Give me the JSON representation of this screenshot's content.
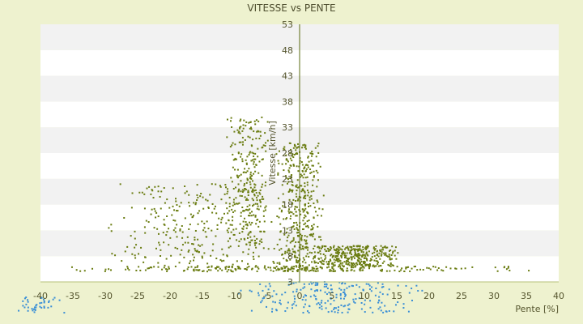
{
  "chart_data": {
    "type": "scatter",
    "title": "VITESSE vs PENTE",
    "xlabel": "Pente [%]",
    "ylabel": "Vitesse [km/h]",
    "xlim": [
      -40,
      40
    ],
    "ylim": [
      3,
      53
    ],
    "xticks": [
      "-40",
      "-35",
      "-30",
      "-25",
      "-20",
      "-15",
      "-10",
      "-5",
      "0",
      "5",
      "10",
      "15",
      "20",
      "25",
      "30",
      "35",
      "40"
    ],
    "yticks": [
      "3",
      "8",
      "13",
      "18",
      "23",
      "28",
      "33",
      "38",
      "43",
      "48",
      "53"
    ],
    "grid": "alternating horizontal bands",
    "legend": "none",
    "colors": {
      "background": "#eef2cf",
      "plot_band_light": "#ffffff",
      "plot_band_dark": "#f2f2f2",
      "axis": "#5a6b10",
      "series_main": "#6b7d12",
      "series_low": "#3a8fd6"
    },
    "series": [
      {
        "color": "#6b7d12",
        "description_x_range": [
          -45,
          45
        ],
        "clusters": [
          {
            "x_center": -8,
            "x_spread": 3.5,
            "y_range": [
              10,
              35
            ]
          },
          {
            "x_center": 0,
            "x_spread": 4,
            "y_range": [
              5,
              30
            ]
          },
          {
            "x_center": 8,
            "x_spread": 8,
            "y_range": [
              6,
              10
            ]
          },
          {
            "x_center": 0,
            "x_spread": 40,
            "y_range": [
              5,
              6
            ]
          },
          {
            "x_center": -15,
            "x_spread": 15,
            "y_range": [
              6,
              22
            ]
          }
        ]
      },
      {
        "color": "#3a8fd6",
        "clusters": [
          {
            "x_center": 5,
            "x_spread": 15,
            "y_range": [
              -3,
              3
            ]
          },
          {
            "x_center": -40,
            "x_spread": 5,
            "y_range": [
              -3,
              0
            ]
          }
        ]
      }
    ]
  }
}
